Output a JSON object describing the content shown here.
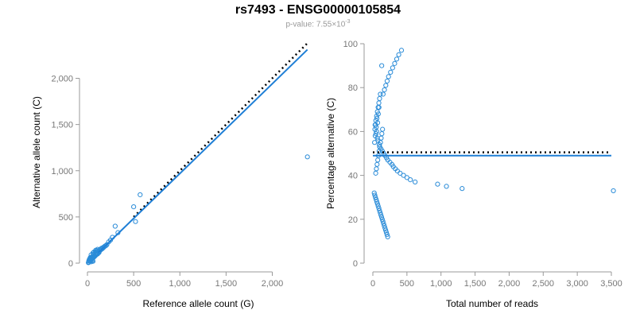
{
  "title": "rs7493 - ENSG00000105854",
  "subtitle": {
    "prefix": "p-value: 7.55",
    "times": "×",
    "base": "10",
    "exponent": "-3"
  },
  "colors": {
    "points": "#2b8cd8",
    "fit": "#1f7fd6",
    "expected": "#000000",
    "axis": "#999999"
  },
  "chart_data": [
    {
      "type": "scatter",
      "name": "allele-counts",
      "xlabel": "Reference allele count (G)",
      "ylabel": "Alternative allele count (C)",
      "xlim": [
        0,
        2400
      ],
      "ylim": [
        0,
        2400
      ],
      "xticks": [
        0,
        500,
        1000,
        1500,
        2000
      ],
      "yticks": [
        0,
        500,
        1000,
        1500,
        2000
      ],
      "xtick_labels": [
        "0",
        "500",
        "1,000",
        "1,500",
        "2,000"
      ],
      "ytick_labels": [
        "0",
        "500",
        "1,000",
        "1,500",
        "2,000"
      ],
      "expected_line": {
        "x": [
          500,
          2380
        ],
        "y": [
          500,
          2380
        ],
        "style": "dotted"
      },
      "fit_line": {
        "x": [
          120,
          2380
        ],
        "y": [
          115,
          2310
        ],
        "style": "solid"
      },
      "points": {
        "x": [
          10,
          15,
          20,
          25,
          30,
          35,
          40,
          45,
          50,
          55,
          60,
          65,
          70,
          75,
          80,
          85,
          90,
          95,
          100,
          105,
          110,
          120,
          125,
          130,
          140,
          150,
          160,
          170,
          180,
          190,
          200,
          210,
          230,
          250,
          270,
          300,
          330,
          500,
          520,
          570,
          2380,
          20,
          30,
          40,
          50,
          60,
          70,
          80,
          90,
          100,
          110,
          15,
          25,
          35,
          45,
          55,
          65,
          75,
          85,
          95,
          105,
          130,
          150,
          170,
          40,
          60
        ],
        "y": [
          5,
          10,
          20,
          30,
          25,
          40,
          35,
          50,
          45,
          60,
          55,
          70,
          65,
          80,
          75,
          90,
          85,
          100,
          95,
          110,
          100,
          120,
          115,
          130,
          140,
          150,
          155,
          170,
          175,
          185,
          190,
          200,
          230,
          250,
          280,
          400,
          330,
          610,
          450,
          740,
          1150,
          40,
          60,
          90,
          70,
          110,
          120,
          100,
          140,
          130,
          150,
          25,
          45,
          55,
          65,
          30,
          95,
          80,
          125,
          105,
          135,
          145,
          160,
          165,
          15,
          20
        ]
      }
    },
    {
      "type": "scatter",
      "name": "percentage-alternative",
      "xlabel": "Total number of reads",
      "ylabel": "Percentage alternative (C)",
      "xlim": [
        0,
        3500
      ],
      "ylim": [
        0,
        100
      ],
      "xticks": [
        0,
        500,
        1000,
        1500,
        2000,
        2500,
        3000,
        3500
      ],
      "yticks": [
        0,
        20,
        40,
        60,
        80,
        100
      ],
      "xtick_labels": [
        "0",
        "500",
        "1,000",
        "1,500",
        "2,000",
        "2,500",
        "3,000",
        "3,500"
      ],
      "ytick_labels": [
        "0",
        "20",
        "40",
        "60",
        "80",
        "100"
      ],
      "expected_line": {
        "x": [
          0,
          3500
        ],
        "y": [
          50.5,
          50.5
        ],
        "style": "dotted"
      },
      "fit_line": {
        "x": [
          0,
          3500
        ],
        "y": [
          49,
          49
        ],
        "style": "solid"
      },
      "points": {
        "x": [
          130,
          110,
          90,
          80,
          60,
          70,
          40,
          50,
          30,
          55,
          45,
          35,
          65,
          75,
          25,
          95,
          100,
          120,
          140,
          160,
          180,
          200,
          220,
          250,
          280,
          300,
          330,
          360,
          400,
          450,
          500,
          550,
          620,
          950,
          1080,
          1310,
          3530,
          20,
          28,
          38,
          48,
          58,
          68,
          78,
          88,
          98,
          108,
          118,
          128,
          138,
          148,
          158,
          168,
          178,
          188,
          198,
          208,
          218,
          42,
          52,
          62,
          72,
          82,
          92,
          102,
          112,
          122,
          132,
          142,
          33,
          44,
          55,
          66,
          77,
          88,
          99,
          150,
          170,
          190,
          210,
          230,
          260,
          290,
          320,
          350,
          380,
          420
        ],
        "y": [
          90,
          77,
          71,
          68,
          66,
          64,
          63,
          62,
          61,
          60,
          59,
          58,
          57,
          56,
          55,
          54,
          53,
          52,
          51,
          50,
          49,
          48,
          47,
          46,
          45,
          44,
          43,
          42,
          41,
          40,
          39,
          38,
          37,
          36,
          35,
          34,
          33,
          32,
          31,
          30,
          29,
          28,
          27,
          26,
          25,
          24,
          23,
          22,
          21,
          20,
          19,
          18,
          17,
          16,
          15,
          14,
          13,
          12,
          41,
          43,
          45,
          47,
          49,
          51,
          53,
          55,
          57,
          59,
          61,
          63,
          65,
          67,
          69,
          71,
          73,
          75,
          77,
          79,
          81,
          83,
          85,
          87,
          89,
          91,
          93,
          95,
          97
        ],
        "note": "values estimated from the plotted scatter"
      }
    }
  ]
}
